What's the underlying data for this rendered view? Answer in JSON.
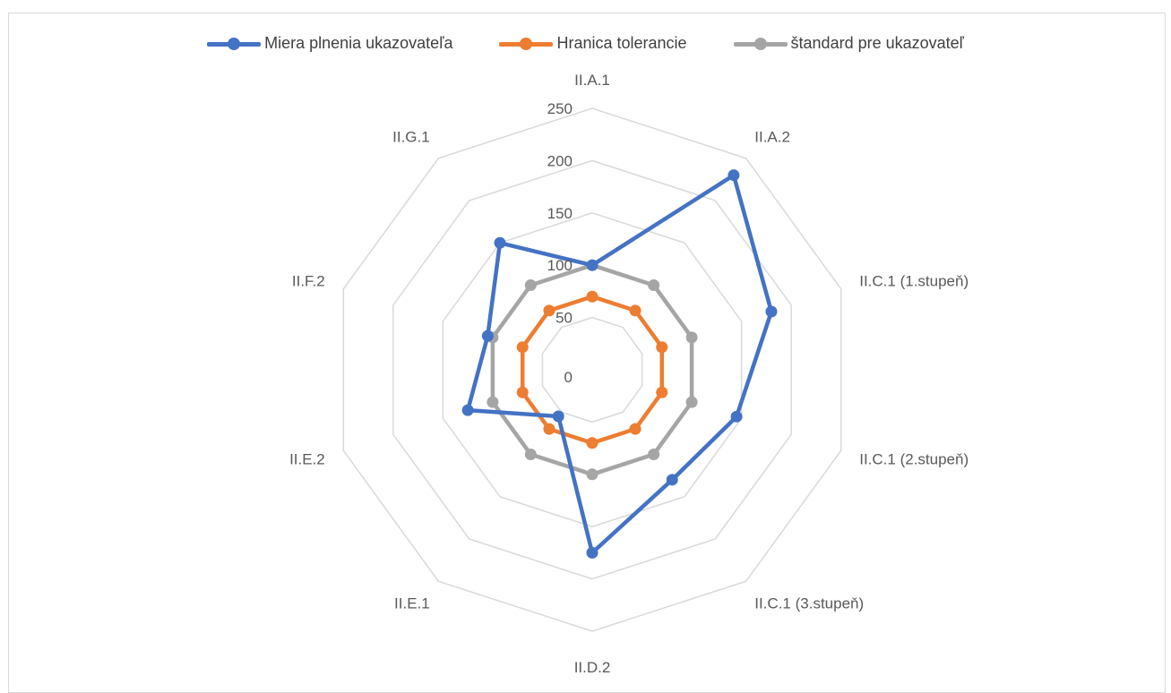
{
  "chart_data": {
    "type": "radar",
    "categories": [
      "II.A.1",
      "II.A.2",
      "II.C.1 (1.stupeň)",
      "II.C.1 (2.stupeň)",
      "II.C.1 (3.stupeň)",
      "II.D.2",
      "II.E.1",
      "II.E.2",
      "II.F.2",
      "II.G.1"
    ],
    "ticks": [
      "0",
      "50",
      "100",
      "150",
      "200",
      "250"
    ],
    "rlim": [
      0,
      250
    ],
    "grid": true,
    "legend_position": "top",
    "series": [
      {
        "name": "Miera plnenia ukazovateľa",
        "color": "#4472c4",
        "values": [
          100,
          230,
          180,
          145,
          130,
          175,
          55,
          125,
          105,
          150
        ]
      },
      {
        "name": "Hranica tolerancie",
        "color": "#ed7d31",
        "values": [
          70,
          70,
          70,
          70,
          70,
          70,
          70,
          70,
          70,
          70
        ]
      },
      {
        "name": "štandard pre ukazovateľ",
        "color": "#a5a5a5",
        "values": [
          100,
          100,
          100,
          100,
          100,
          100,
          100,
          100,
          100,
          100
        ]
      }
    ]
  }
}
